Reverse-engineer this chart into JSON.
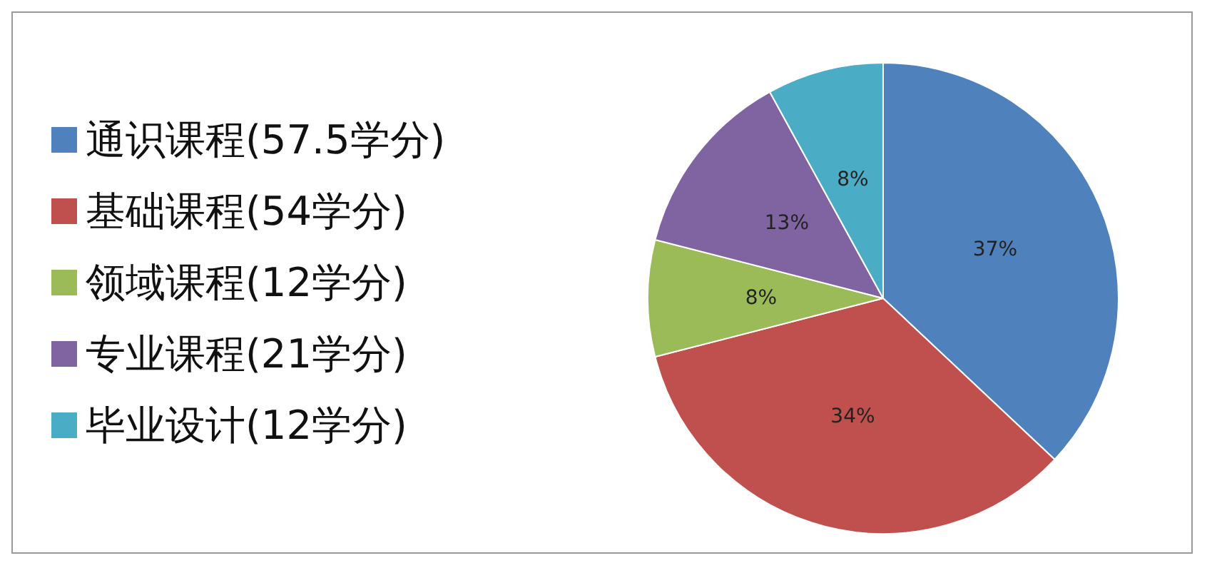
{
  "chart_data": {
    "type": "pie",
    "categories": [
      "通识课程(57.5学分)",
      "基础课程(54学分)",
      "领域课程(12学分)",
      "专业课程(21学分)",
      "毕业设计(12学分)"
    ],
    "values": [
      37,
      34,
      8,
      13,
      8
    ],
    "value_labels": [
      "37%",
      "34%",
      "8%",
      "13%",
      "8%"
    ],
    "colors": [
      "#4f81bd",
      "#c0504d",
      "#9bbb59",
      "#8064a2",
      "#4bacc6"
    ],
    "legend": "left"
  }
}
